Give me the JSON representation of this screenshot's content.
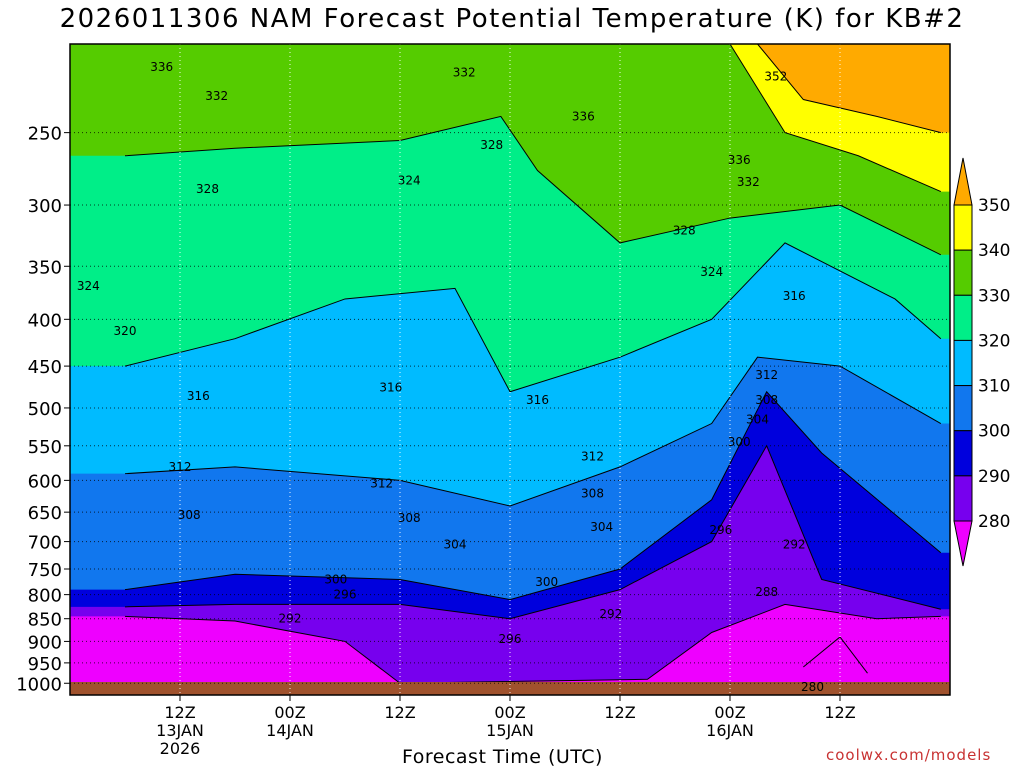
{
  "chart_data": {
    "type": "contour",
    "title": "2026011306 NAM Forecast Potential Temperature (K) for KB#2",
    "xlabel": "Forecast Time (UTC)",
    "ylabel": "",
    "y_scale": "log-pressure",
    "ylim": [
      1030,
      200
    ],
    "y_ticks": [
      250,
      300,
      350,
      400,
      450,
      500,
      550,
      600,
      650,
      700,
      750,
      800,
      850,
      900,
      950,
      1000
    ],
    "x_ticks": [
      {
        "time": "2026-01-13T12:00Z",
        "lines": [
          "12Z",
          "13JAN",
          "2026"
        ]
      },
      {
        "time": "2026-01-14T00:00Z",
        "lines": [
          "00Z",
          "14JAN"
        ]
      },
      {
        "time": "2026-01-14T12:00Z",
        "lines": [
          "12Z"
        ]
      },
      {
        "time": "2026-01-15T00:00Z",
        "lines": [
          "00Z",
          "15JAN"
        ]
      },
      {
        "time": "2026-01-15T12:00Z",
        "lines": [
          "12Z"
        ]
      },
      {
        "time": "2026-01-16T00:00Z",
        "lines": [
          "00Z",
          "16JAN"
        ]
      },
      {
        "time": "2026-01-16T12:00Z",
        "lines": [
          "12Z"
        ]
      }
    ],
    "grid": true,
    "colorbar": {
      "levels": [
        "350",
        "340",
        "330",
        "320",
        "310",
        "300",
        "290",
        "280"
      ],
      "colors": [
        "#ffff00",
        "#55cc00",
        "#00ee88",
        "#00bbff",
        "#1177ee",
        "#0000dd",
        "#7700ee",
        "#ee00ff"
      ],
      "extend_high_color": "#ffaa00",
      "extend_low_color": "#ee00ff"
    },
    "series": [
      {
        "value": 280,
        "fill": "#ee00ff",
        "points": [
          [
            "2026-01-16T08:00Z",
            960
          ],
          [
            "2026-01-16T12:00Z",
            890
          ],
          [
            "2026-01-16T15:00Z",
            975
          ]
        ]
      },
      {
        "value": 288,
        "fill": "#7700ee",
        "points": [
          [
            "2026-01-13T06:00Z",
            845
          ],
          [
            "2026-01-13T18:00Z",
            855
          ],
          [
            "2026-01-14T06:00Z",
            900
          ],
          [
            "2026-01-14T12:00Z",
            1000
          ],
          [
            "2026-01-15T15:00Z",
            990
          ],
          [
            "2026-01-15T22:00Z",
            880
          ],
          [
            "2026-01-16T06:00Z",
            820
          ],
          [
            "2026-01-16T16:00Z",
            850
          ],
          [
            "2026-01-16T23:00Z",
            845
          ]
        ]
      },
      {
        "value": 292,
        "fill": "#0000dd",
        "points": [
          [
            "2026-01-13T06:00Z",
            825
          ],
          [
            "2026-01-13T18:00Z",
            820
          ],
          [
            "2026-01-14T12:00Z",
            820
          ],
          [
            "2026-01-15T00:00Z",
            850
          ],
          [
            "2026-01-15T12:00Z",
            790
          ],
          [
            "2026-01-15T22:00Z",
            700
          ],
          [
            "2026-01-16T04:00Z",
            550
          ],
          [
            "2026-01-16T10:00Z",
            770
          ],
          [
            "2026-01-16T23:00Z",
            830
          ]
        ]
      },
      {
        "value": 300,
        "fill": "#1177ee",
        "points": [
          [
            "2026-01-13T06:00Z",
            790
          ],
          [
            "2026-01-13T18:00Z",
            760
          ],
          [
            "2026-01-14T12:00Z",
            770
          ],
          [
            "2026-01-15T00:00Z",
            810
          ],
          [
            "2026-01-15T12:00Z",
            750
          ],
          [
            "2026-01-15T22:00Z",
            630
          ],
          [
            "2026-01-16T04:00Z",
            480
          ],
          [
            "2026-01-16T10:00Z",
            560
          ],
          [
            "2026-01-16T23:00Z",
            720
          ]
        ]
      },
      {
        "value": 310,
        "fill": "#00bbff",
        "points": [
          [
            "2026-01-13T06:00Z",
            590
          ],
          [
            "2026-01-13T18:00Z",
            580
          ],
          [
            "2026-01-14T12:00Z",
            600
          ],
          [
            "2026-01-15T00:00Z",
            640
          ],
          [
            "2026-01-15T12:00Z",
            580
          ],
          [
            "2026-01-15T22:00Z",
            520
          ],
          [
            "2026-01-16T03:00Z",
            440
          ],
          [
            "2026-01-16T12:00Z",
            450
          ],
          [
            "2026-01-16T23:00Z",
            520
          ]
        ]
      },
      {
        "value": 320,
        "fill": "#00ee88",
        "points": [
          [
            "2026-01-13T06:00Z",
            450
          ],
          [
            "2026-01-13T18:00Z",
            420
          ],
          [
            "2026-01-14T06:00Z",
            380
          ],
          [
            "2026-01-14T18:00Z",
            370
          ],
          [
            "2026-01-15T00:00Z",
            480
          ],
          [
            "2026-01-15T12:00Z",
            440
          ],
          [
            "2026-01-15T22:00Z",
            400
          ],
          [
            "2026-01-16T06:00Z",
            330
          ],
          [
            "2026-01-16T18:00Z",
            380
          ],
          [
            "2026-01-16T23:00Z",
            420
          ]
        ]
      },
      {
        "value": 330,
        "fill": "#55cc00",
        "points": [
          [
            "2026-01-13T06:00Z",
            265
          ],
          [
            "2026-01-13T18:00Z",
            260
          ],
          [
            "2026-01-14T12:00Z",
            255
          ],
          [
            "2026-01-14T23:00Z",
            240
          ],
          [
            "2026-01-15T03:00Z",
            275
          ],
          [
            "2026-01-15T12:00Z",
            330
          ],
          [
            "2026-01-16T00:00Z",
            310
          ],
          [
            "2026-01-16T12:00Z",
            300
          ],
          [
            "2026-01-16T23:00Z",
            340
          ]
        ]
      },
      {
        "value": 340,
        "fill": "#ffff00",
        "points": [
          [
            "2026-01-16T00:00Z",
            200
          ],
          [
            "2026-01-16T06:00Z",
            250
          ],
          [
            "2026-01-16T14:00Z",
            265
          ],
          [
            "2026-01-16T23:00Z",
            290
          ]
        ]
      },
      {
        "value": 350,
        "fill": "#ffaa00",
        "points": [
          [
            "2026-01-16T03:00Z",
            200
          ],
          [
            "2026-01-16T08:00Z",
            230
          ],
          [
            "2026-01-16T16:00Z",
            240
          ],
          [
            "2026-01-16T23:00Z",
            250
          ]
        ]
      }
    ],
    "contour_labels": [
      {
        "text": "336",
        "time": "2026-01-13T10:00Z",
        "p": 212
      },
      {
        "text": "332",
        "time": "2026-01-13T16:00Z",
        "p": 228
      },
      {
        "text": "332",
        "time": "2026-01-14T19:00Z",
        "p": 215
      },
      {
        "text": "328",
        "time": "2026-01-14T22:00Z",
        "p": 258
      },
      {
        "text": "336",
        "time": "2026-01-15T08:00Z",
        "p": 240
      },
      {
        "text": "352",
        "time": "2026-01-16T05:00Z",
        "p": 217
      },
      {
        "text": "336",
        "time": "2026-01-16T01:00Z",
        "p": 268
      },
      {
        "text": "332",
        "time": "2026-01-16T02:00Z",
        "p": 283
      },
      {
        "text": "328",
        "time": "2026-01-13T15:00Z",
        "p": 288
      },
      {
        "text": "324",
        "time": "2026-01-14T13:00Z",
        "p": 282
      },
      {
        "text": "328",
        "time": "2026-01-15T19:00Z",
        "p": 320
      },
      {
        "text": "324",
        "time": "2026-01-13T02:00Z",
        "p": 368
      },
      {
        "text": "324",
        "time": "2026-01-15T22:00Z",
        "p": 355
      },
      {
        "text": "316",
        "time": "2026-01-16T07:00Z",
        "p": 377
      },
      {
        "text": "320",
        "time": "2026-01-13T06:00Z",
        "p": 412
      },
      {
        "text": "316",
        "time": "2026-01-13T14:00Z",
        "p": 485
      },
      {
        "text": "316",
        "time": "2026-01-14T11:00Z",
        "p": 475
      },
      {
        "text": "316",
        "time": "2026-01-15T03:00Z",
        "p": 490
      },
      {
        "text": "312",
        "time": "2026-01-16T04:00Z",
        "p": 460
      },
      {
        "text": "308",
        "time": "2026-01-16T04:00Z",
        "p": 490
      },
      {
        "text": "304",
        "time": "2026-01-16T03:00Z",
        "p": 515
      },
      {
        "text": "300",
        "time": "2026-01-16T01:00Z",
        "p": 545
      },
      {
        "text": "312",
        "time": "2026-01-13T12:00Z",
        "p": 580
      },
      {
        "text": "312",
        "time": "2026-01-14T10:00Z",
        "p": 605
      },
      {
        "text": "312",
        "time": "2026-01-15T09:00Z",
        "p": 565
      },
      {
        "text": "308",
        "time": "2026-01-13T13:00Z",
        "p": 655
      },
      {
        "text": "308",
        "time": "2026-01-14T13:00Z",
        "p": 660
      },
      {
        "text": "308",
        "time": "2026-01-15T09:00Z",
        "p": 620
      },
      {
        "text": "304",
        "time": "2026-01-14T18:00Z",
        "p": 705
      },
      {
        "text": "304",
        "time": "2026-01-15T10:00Z",
        "p": 675
      },
      {
        "text": "296",
        "time": "2026-01-15T23:00Z",
        "p": 680
      },
      {
        "text": "292",
        "time": "2026-01-16T07:00Z",
        "p": 705
      },
      {
        "text": "300",
        "time": "2026-01-14T05:00Z",
        "p": 770
      },
      {
        "text": "296",
        "time": "2026-01-14T06:00Z",
        "p": 800
      },
      {
        "text": "300",
        "time": "2026-01-15T04:00Z",
        "p": 775
      },
      {
        "text": "292",
        "time": "2026-01-14T00:00Z",
        "p": 850
      },
      {
        "text": "292",
        "time": "2026-01-15T11:00Z",
        "p": 840
      },
      {
        "text": "288",
        "time": "2026-01-16T04:00Z",
        "p": 795
      },
      {
        "text": "296",
        "time": "2026-01-15T00:00Z",
        "p": 895
      },
      {
        "text": "280",
        "time": "2026-01-16T09:00Z",
        "p": 1010
      }
    ]
  },
  "source_credit": "coolwx.com/models"
}
